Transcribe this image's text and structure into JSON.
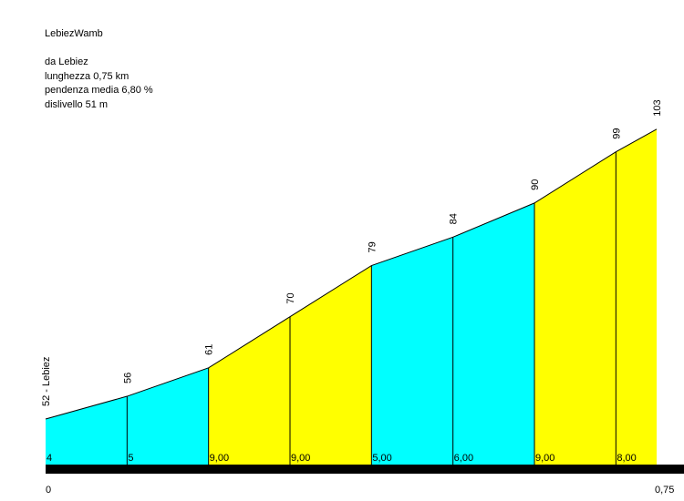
{
  "info": {
    "title": "LebiezWamb",
    "start": "da Lebiez",
    "length": "lunghezza 0,75 km",
    "avg_gradient": "pendenza media 6,80 %",
    "elevation_gain": "dislivello 51 m"
  },
  "colors": {
    "cyan": "#00ffff",
    "yellow": "#ffff00",
    "base": "#000000"
  },
  "chart_data": {
    "type": "area",
    "title": "LebiezWamb",
    "xlabel": "",
    "ylabel": "",
    "x_unit": "km",
    "xlim": [
      0,
      0.75
    ],
    "x_tick_labels": [
      "0",
      "0,75"
    ],
    "start_label": "52 - Lebiez",
    "elevation_labels": [
      "56",
      "61",
      "70",
      "79",
      "84",
      "90",
      "99",
      "103"
    ],
    "points": [
      {
        "x": 0,
        "y": 52
      },
      {
        "x": 0.1,
        "y": 56
      },
      {
        "x": 0.2,
        "y": 61
      },
      {
        "x": 0.3,
        "y": 70
      },
      {
        "x": 0.4,
        "y": 79
      },
      {
        "x": 0.5,
        "y": 84
      },
      {
        "x": 0.6,
        "y": 90
      },
      {
        "x": 0.7,
        "y": 99
      },
      {
        "x": 0.75,
        "y": 103
      }
    ],
    "segments": [
      {
        "gradient_label": "4",
        "color": "cyan"
      },
      {
        "gradient_label": "5",
        "color": "cyan"
      },
      {
        "gradient_label": "9,00",
        "color": "yellow"
      },
      {
        "gradient_label": "9,00",
        "color": "yellow"
      },
      {
        "gradient_label": "5,00",
        "color": "cyan"
      },
      {
        "gradient_label": "6,00",
        "color": "cyan"
      },
      {
        "gradient_label": "9,00",
        "color": "yellow"
      },
      {
        "gradient_label": "8,00",
        "color": "yellow"
      }
    ]
  }
}
